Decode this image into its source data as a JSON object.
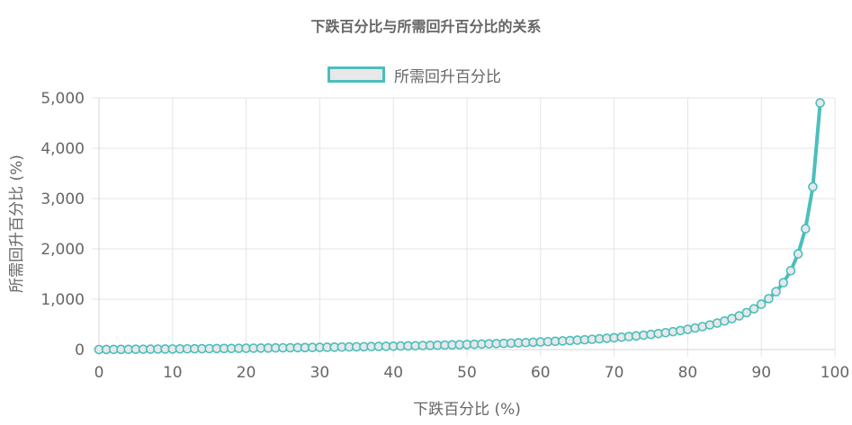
{
  "chart_data": {
    "type": "line",
    "title": "下跌百分比与所需回升百分比的关系",
    "xlabel": "下跌百分比 (%)",
    "ylabel": "所需回升百分比 (%)",
    "xlim": [
      0,
      100
    ],
    "ylim": [
      0,
      5000
    ],
    "x_ticks": [
      "0",
      "10",
      "20",
      "30",
      "40",
      "50",
      "60",
      "70",
      "80",
      "90",
      "100"
    ],
    "y_ticks": [
      "0",
      "1,000",
      "2,000",
      "3,000",
      "4,000",
      "5,000"
    ],
    "grid": true,
    "legend_position": "top",
    "series": [
      {
        "name": "所需回升百分比",
        "color": "#4bbfbd",
        "x": [
          0,
          1,
          2,
          3,
          4,
          5,
          6,
          7,
          8,
          9,
          10,
          11,
          12,
          13,
          14,
          15,
          16,
          17,
          18,
          19,
          20,
          21,
          22,
          23,
          24,
          25,
          26,
          27,
          28,
          29,
          30,
          31,
          32,
          33,
          34,
          35,
          36,
          37,
          38,
          39,
          40,
          41,
          42,
          43,
          44,
          45,
          46,
          47,
          48,
          49,
          50,
          51,
          52,
          53,
          54,
          55,
          56,
          57,
          58,
          59,
          60,
          61,
          62,
          63,
          64,
          65,
          66,
          67,
          68,
          69,
          70,
          71,
          72,
          73,
          74,
          75,
          76,
          77,
          78,
          79,
          80,
          81,
          82,
          83,
          84,
          85,
          86,
          87,
          88,
          89,
          90,
          91,
          92,
          93,
          94,
          95,
          96,
          97,
          98
        ],
        "values": [
          0,
          1.01,
          2.04,
          3.09,
          4.17,
          5.26,
          6.38,
          7.53,
          8.7,
          9.89,
          11.11,
          12.36,
          13.64,
          14.94,
          16.28,
          17.65,
          19.05,
          20.48,
          21.95,
          23.46,
          25,
          26.58,
          28.21,
          29.87,
          31.58,
          33.33,
          35.14,
          36.99,
          38.89,
          40.85,
          42.86,
          44.93,
          47.06,
          49.25,
          51.52,
          53.85,
          56.25,
          58.73,
          61.29,
          63.93,
          66.67,
          69.49,
          72.41,
          75.44,
          78.57,
          81.82,
          85.19,
          88.68,
          92.31,
          96.08,
          100,
          104.08,
          108.33,
          112.77,
          117.39,
          122.22,
          127.27,
          132.56,
          138.1,
          143.9,
          150,
          156.41,
          163.16,
          170.27,
          177.78,
          185.71,
          194.12,
          203.03,
          212.5,
          222.58,
          233.33,
          244.83,
          257.14,
          270.37,
          284.62,
          300,
          316.67,
          334.78,
          354.55,
          376.19,
          400,
          426.32,
          455.56,
          488.24,
          525,
          566.67,
          614.29,
          669.23,
          733.33,
          809.09,
          900,
          1011.11,
          1150,
          1328.57,
          1566.67,
          1900,
          2400,
          3233.33,
          4900
        ]
      }
    ]
  }
}
